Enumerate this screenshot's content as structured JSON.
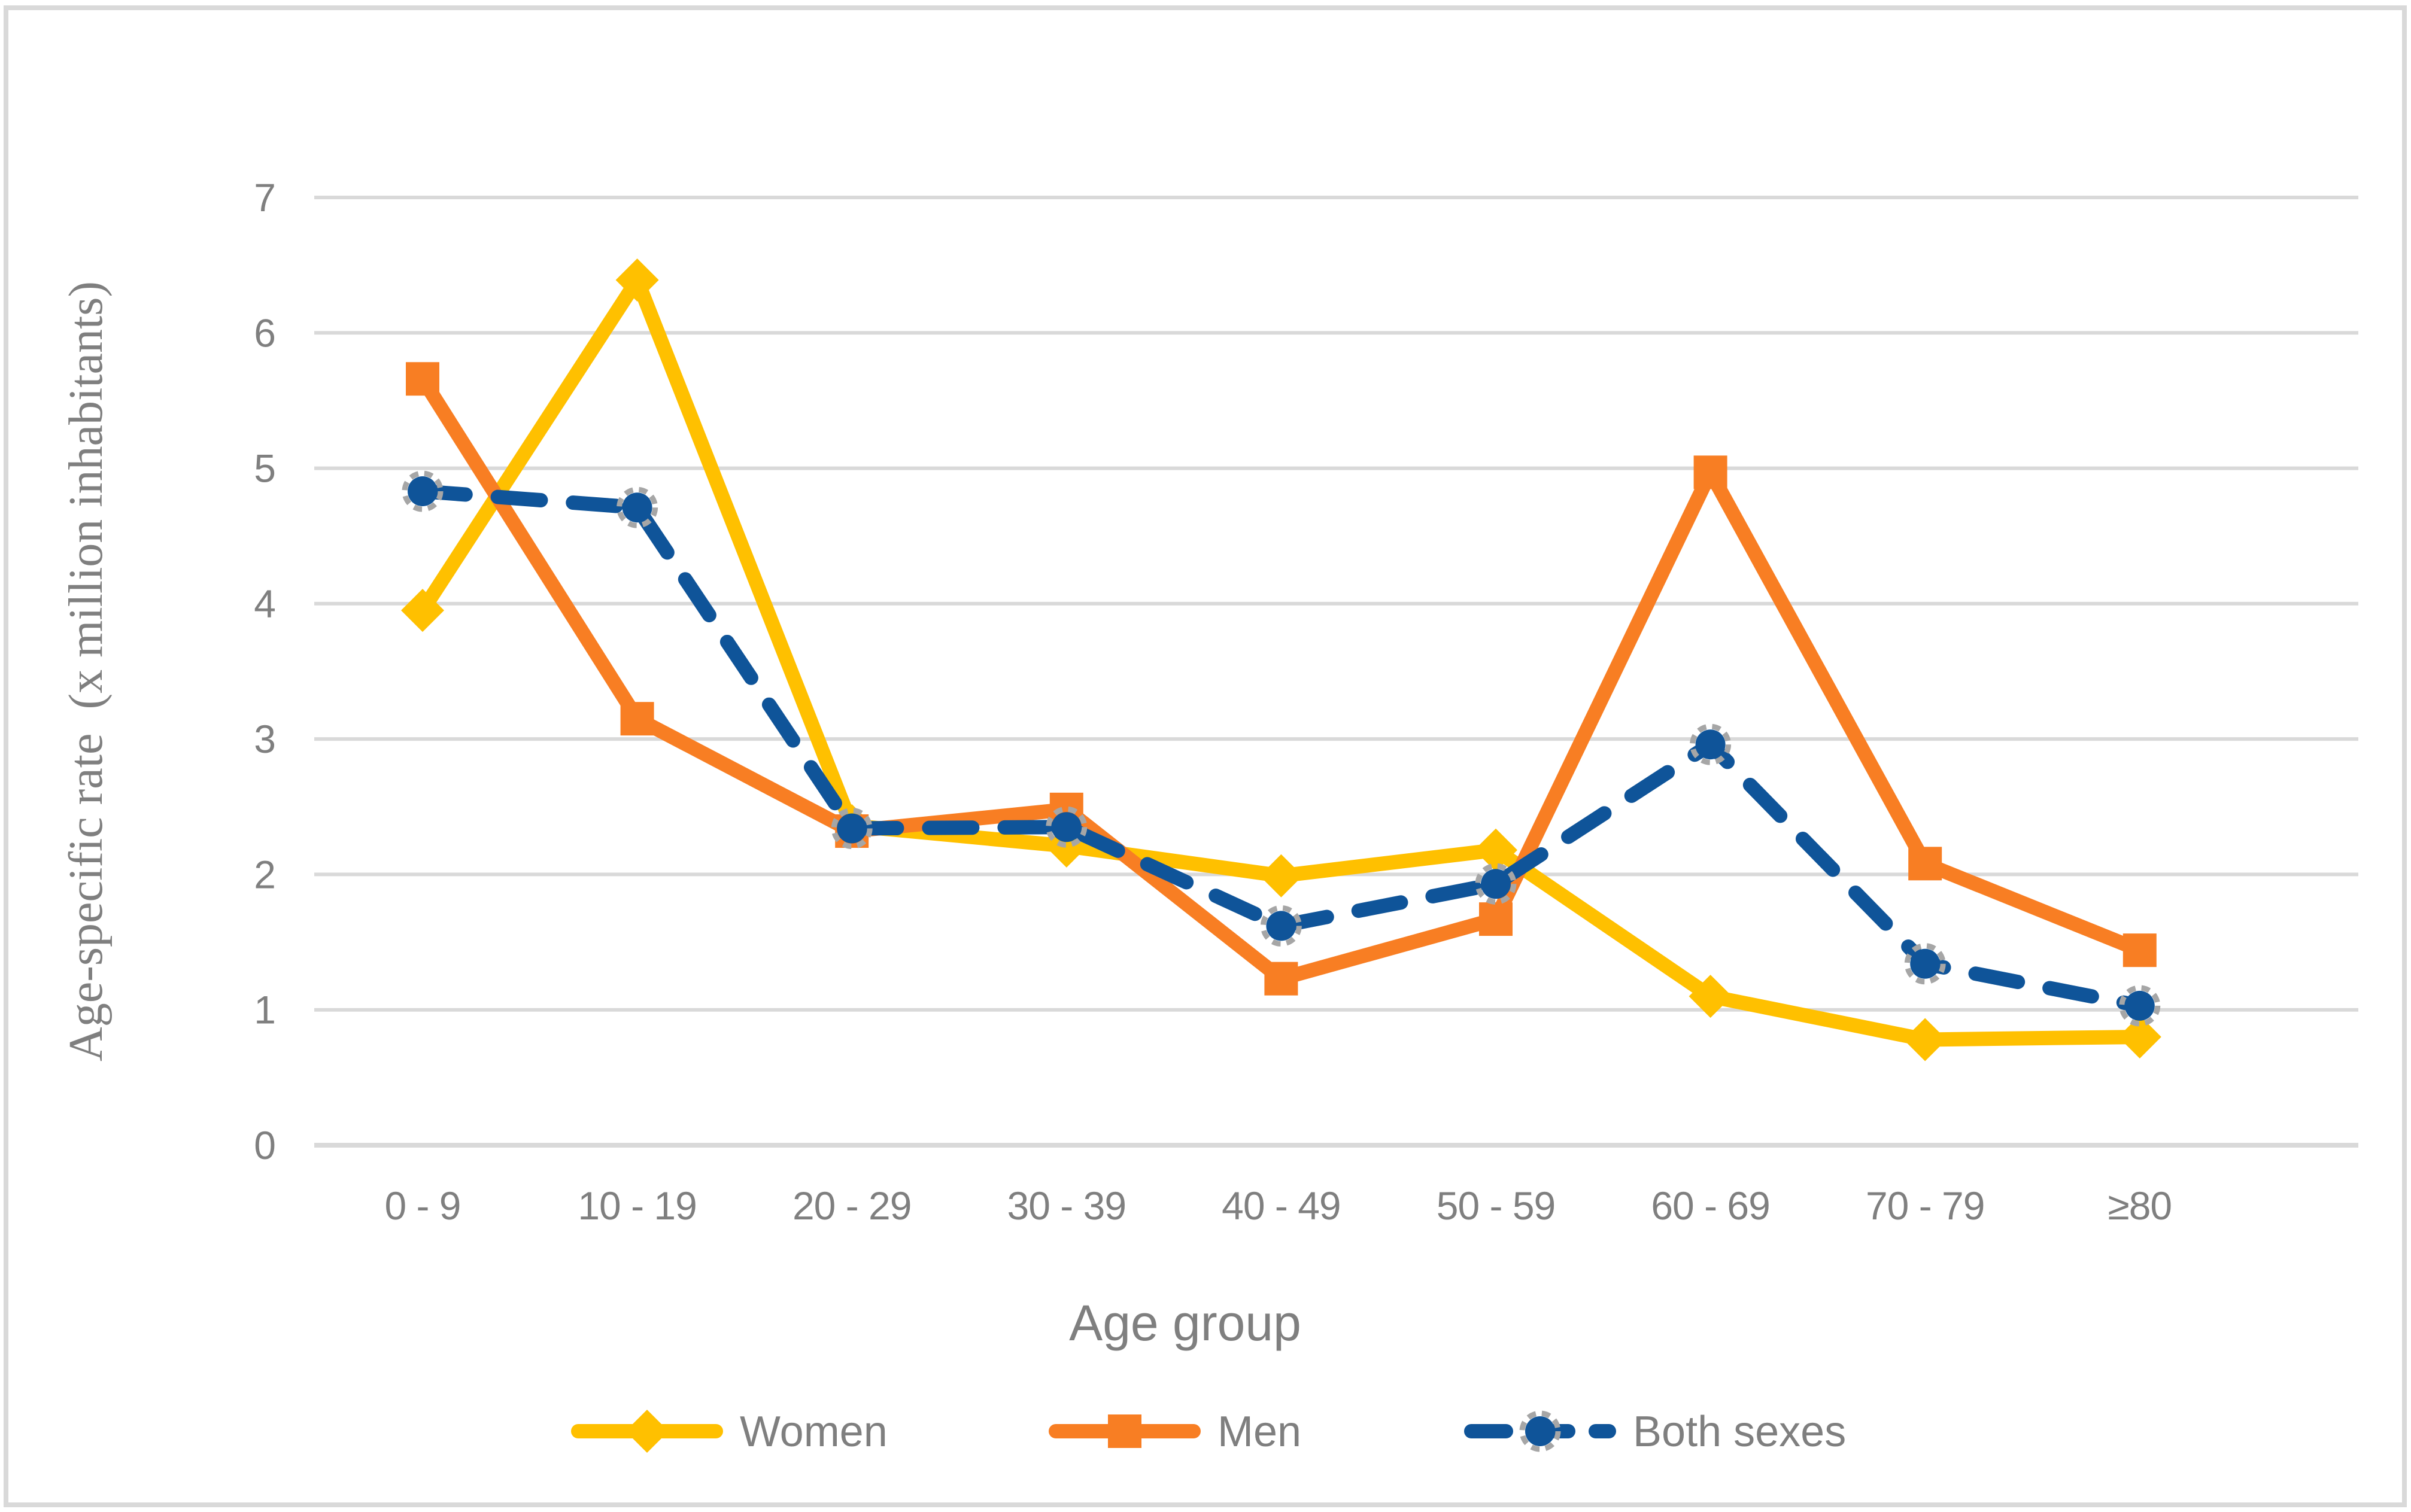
{
  "figure": {
    "background": "#FFFFFF",
    "border_color": "#D9D9D9"
  },
  "colors": {
    "gridline": "#D9D9D9",
    "axis_line": "#D9D9D9",
    "axis_text": "#7F7F7F",
    "marker_ring": "#A6A6A6"
  },
  "chart_data": {
    "type": "line",
    "title": "",
    "categories": [
      "0 - 9",
      "10 - 19",
      "20 - 29",
      "30 - 39",
      "40 - 49",
      "50 - 59",
      "60 - 69",
      "70 - 79",
      "≥80"
    ],
    "xlabel": "Age group",
    "ylabel": "Age-specific rate  (x million inhabitants)",
    "ylim": [
      0,
      7
    ],
    "yticks": [
      0,
      1,
      2,
      3,
      4,
      5,
      6,
      7
    ],
    "grid": true,
    "legend_position": "bottom",
    "series": [
      {
        "name": "Women",
        "color": "#FFC000",
        "marker": "diamond",
        "line": "solid",
        "values": [
          3.95,
          6.39,
          2.36,
          2.21,
          1.99,
          2.18,
          1.1,
          0.78,
          0.8
        ]
      },
      {
        "name": "Men",
        "color": "#F87E23",
        "marker": "square",
        "line": "solid",
        "values": [
          5.66,
          3.15,
          2.32,
          2.48,
          1.23,
          1.67,
          4.97,
          2.08,
          1.44
        ]
      },
      {
        "name": "Both sexes",
        "color": "#0F5499",
        "marker": "circle",
        "marker_ring": "#A6A6A6",
        "line": "dashed",
        "values": [
          4.83,
          4.71,
          2.34,
          2.35,
          1.62,
          1.93,
          2.96,
          1.34,
          1.03
        ]
      }
    ]
  }
}
